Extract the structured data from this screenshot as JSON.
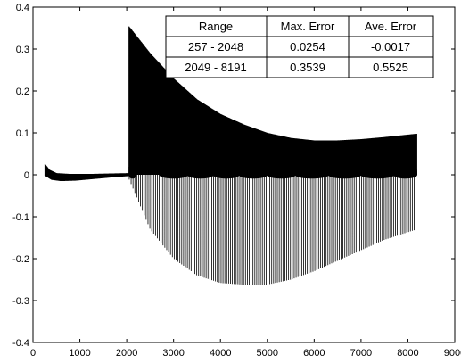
{
  "chart_data": {
    "type": "line",
    "title": "",
    "xlabel": "",
    "ylabel": "",
    "xlim": [
      0,
      9000
    ],
    "ylim": [
      -0.4,
      0.4
    ],
    "x_ticks": [
      0,
      1000,
      2000,
      3000,
      4000,
      5000,
      6000,
      7000,
      8000,
      9000
    ],
    "y_ticks": [
      -0.4,
      -0.3,
      -0.2,
      -0.1,
      0,
      0.1,
      0.2,
      0.3,
      0.4
    ],
    "x_tick_labels": [
      "0",
      "1000",
      "2000",
      "3000",
      "4000",
      "5000",
      "6000",
      "7000",
      "8000",
      "9000"
    ],
    "y_tick_labels": [
      "-0.4",
      "-0.3",
      "-0.2",
      "-0.1",
      "0",
      "0.1",
      "0.2",
      "0.3",
      "0.4"
    ],
    "grid": false,
    "series": [
      {
        "color": "#000000",
        "segments": [
          {
            "x_start": 257,
            "x_end": 2048,
            "upper_envelope": [
              [
                257,
                0.0254
              ],
              [
                350,
                0.012
              ],
              [
                500,
                0.004
              ],
              [
                800,
                0.002
              ],
              [
                1200,
                0.002
              ],
              [
                1600,
                0.003
              ],
              [
                2048,
                0.004
              ]
            ],
            "lower_envelope": [
              [
                257,
                -0.002
              ],
              [
                400,
                -0.012
              ],
              [
                600,
                -0.015
              ],
              [
                900,
                -0.014
              ],
              [
                1300,
                -0.01
              ],
              [
                1700,
                -0.006
              ],
              [
                2048,
                -0.003
              ]
            ]
          },
          {
            "x_start": 2049,
            "x_end": 8191,
            "upper_envelope": [
              [
                2049,
                0.3539
              ],
              [
                2500,
                0.29
              ],
              [
                3000,
                0.23
              ],
              [
                3500,
                0.18
              ],
              [
                4000,
                0.145
              ],
              [
                4500,
                0.12
              ],
              [
                5000,
                0.1
              ],
              [
                5500,
                0.088
              ],
              [
                6000,
                0.082
              ],
              [
                6500,
                0.082
              ],
              [
                7000,
                0.085
              ],
              [
                7500,
                0.09
              ],
              [
                8191,
                0.098
              ]
            ],
            "lower_envelope": [
              [
                2049,
                -0.01
              ],
              [
                2500,
                -0.13
              ],
              [
                3000,
                -0.2
              ],
              [
                3500,
                -0.24
              ],
              [
                4000,
                -0.258
              ],
              [
                4500,
                -0.262
              ],
              [
                5000,
                -0.262
              ],
              [
                5500,
                -0.25
              ],
              [
                6000,
                -0.23
              ],
              [
                6500,
                -0.205
              ],
              [
                7000,
                -0.18
              ],
              [
                7500,
                -0.155
              ],
              [
                8191,
                -0.13
              ]
            ]
          }
        ]
      }
    ],
    "table": {
      "placement": "top-right",
      "headers": [
        "Range",
        "Max. Error",
        "Ave. Error"
      ],
      "rows": [
        [
          "257 - 2048",
          "0.0254",
          "-0.0017"
        ],
        [
          "2049 - 8191",
          "0.3539",
          "0.5525"
        ]
      ]
    }
  }
}
